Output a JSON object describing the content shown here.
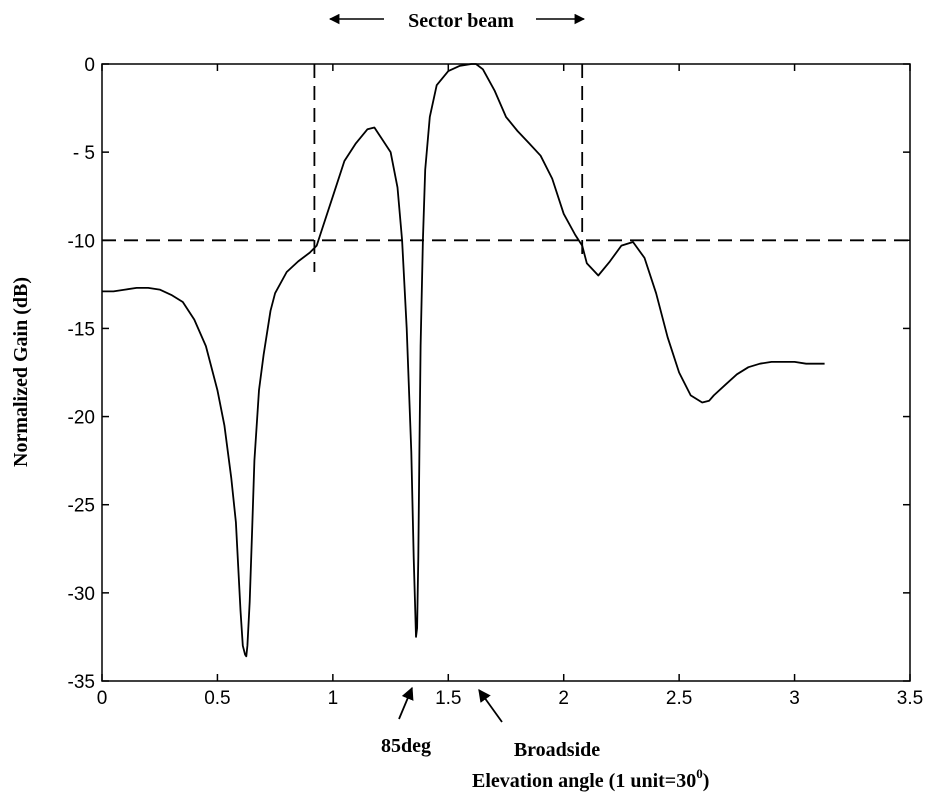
{
  "chart_data": {
    "type": "line",
    "xlabel": "Elevation angle (1 unit=30",
    "xlabel_sup": "0",
    "xlabel_close": ")",
    "ylabel": "Normalized Gain (dB)",
    "xlim": [
      0,
      3.5
    ],
    "ylim": [
      -35,
      0
    ],
    "xticks": [
      0,
      0.5,
      1,
      1.5,
      2,
      2.5,
      3,
      3.5
    ],
    "xtick_labels": [
      "0",
      "0.5",
      "1",
      "1.5",
      "2",
      "2.5",
      "3",
      "3.5"
    ],
    "yticks": [
      0,
      -5,
      -10,
      -15,
      -20,
      -25,
      -30,
      -35
    ],
    "ytick_labels": [
      "0",
      "- 5",
      "-10",
      "-15",
      "-20",
      "-25",
      "-30",
      "-35"
    ],
    "grid": false,
    "series": [
      {
        "style": "solid",
        "color": "#000000",
        "x": [
          0,
          0.05,
          0.1,
          0.15,
          0.2,
          0.25,
          0.3,
          0.35,
          0.4,
          0.45,
          0.5,
          0.53,
          0.56,
          0.58,
          0.59,
          0.6,
          0.61,
          0.62,
          0.625,
          0.63,
          0.64,
          0.65,
          0.66,
          0.68,
          0.7,
          0.73,
          0.75,
          0.8,
          0.85,
          0.9,
          0.93,
          0.95,
          1.0,
          1.05,
          1.1,
          1.15,
          1.18,
          1.2,
          1.25,
          1.28,
          1.3,
          1.32,
          1.34,
          1.35,
          1.36,
          1.365,
          1.37,
          1.375,
          1.38,
          1.39,
          1.4,
          1.42,
          1.45,
          1.5,
          1.55,
          1.6,
          1.62,
          1.65,
          1.7,
          1.75,
          1.8,
          1.85,
          1.9,
          1.95,
          2.0,
          2.05,
          2.08,
          2.1,
          2.15,
          2.2,
          2.25,
          2.3,
          2.35,
          2.4,
          2.45,
          2.5,
          2.55,
          2.6,
          2.63,
          2.65,
          2.7,
          2.75,
          2.8,
          2.85,
          2.9,
          2.95,
          3.0,
          3.05,
          3.1,
          3.13
        ],
        "y": [
          -12.9,
          -12.9,
          -12.8,
          -12.7,
          -12.7,
          -12.8,
          -13.1,
          -13.5,
          -14.5,
          -16.0,
          -18.5,
          -20.5,
          -23.5,
          -26.0,
          -28.5,
          -31.0,
          -33.0,
          -33.5,
          -33.6,
          -33.0,
          -30.5,
          -26.5,
          -22.5,
          -18.5,
          -16.5,
          -14.0,
          -13.0,
          -11.8,
          -11.2,
          -10.7,
          -10.3,
          -9.5,
          -7.5,
          -5.5,
          -4.5,
          -3.7,
          -3.6,
          -4.0,
          -5.0,
          -7.0,
          -10.0,
          -15.0,
          -22.0,
          -28.0,
          -32.5,
          -32.0,
          -28.0,
          -22.0,
          -16.0,
          -10.0,
          -6.0,
          -3.0,
          -1.2,
          -0.4,
          -0.1,
          0.0,
          0.0,
          -0.3,
          -1.5,
          -3.0,
          -3.8,
          -4.5,
          -5.2,
          -6.5,
          -8.5,
          -9.7,
          -10.3,
          -11.3,
          -12.0,
          -11.2,
          -10.3,
          -10.1,
          -11.0,
          -13.0,
          -15.5,
          -17.5,
          -18.8,
          -19.2,
          -19.1,
          -18.8,
          -18.2,
          -17.6,
          -17.2,
          -17.0,
          -16.9,
          -16.9,
          -16.9,
          -17.0,
          -17.0,
          -17.0
        ]
      },
      {
        "style": "dashed",
        "color": "#000000",
        "x": [
          0,
          3.5
        ],
        "y": [
          -10,
          -10
        ]
      },
      {
        "style": "dashed",
        "color": "#000000",
        "x": [
          0.92,
          0.92
        ],
        "y": [
          0,
          -11.8
        ]
      },
      {
        "style": "dashed",
        "color": "#000000",
        "x": [
          2.08,
          2.08
        ],
        "y": [
          0,
          -11.0
        ]
      }
    ],
    "annotations": [
      {
        "id": "sector",
        "text": "Sector beam",
        "x": 1.5,
        "y": 0
      },
      {
        "id": "deg85",
        "text": "85deg",
        "x": 1.36,
        "y": -35
      },
      {
        "id": "broadside",
        "text": "Broadside",
        "x": 1.58,
        "y": -35
      }
    ]
  }
}
